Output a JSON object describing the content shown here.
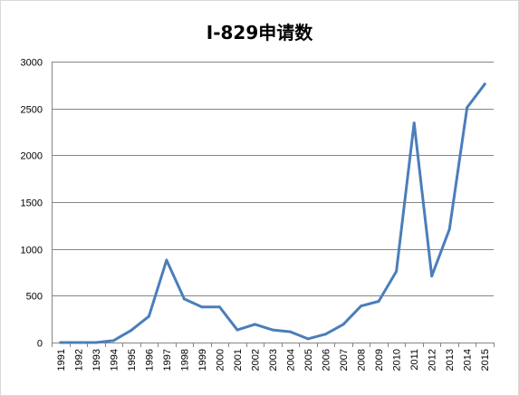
{
  "chart_data": {
    "type": "line",
    "title": "I-829申请数",
    "xlabel": "",
    "ylabel": "",
    "ylim": [
      0,
      3000
    ],
    "yticks": [
      0,
      500,
      1000,
      1500,
      2000,
      2500,
      3000
    ],
    "grid": "horizontal",
    "legend": "none",
    "categories": [
      "1991",
      "1992",
      "1993",
      "1994",
      "1995",
      "1996",
      "1997",
      "1998",
      "1999",
      "2000",
      "2001",
      "2002",
      "2003",
      "2004",
      "2005",
      "2006",
      "2007",
      "2008",
      "2009",
      "2010",
      "2011",
      "2012",
      "2013",
      "2014",
      "2015"
    ],
    "series": [
      {
        "values": [
          0,
          0,
          0,
          20,
          130,
          280,
          880,
          465,
          380,
          380,
          135,
          195,
          135,
          115,
          40,
          90,
          195,
          390,
          440,
          760,
          2345,
          710,
          1210,
          2510,
          2760
        ],
        "color": "#4a7ebb"
      }
    ]
  }
}
